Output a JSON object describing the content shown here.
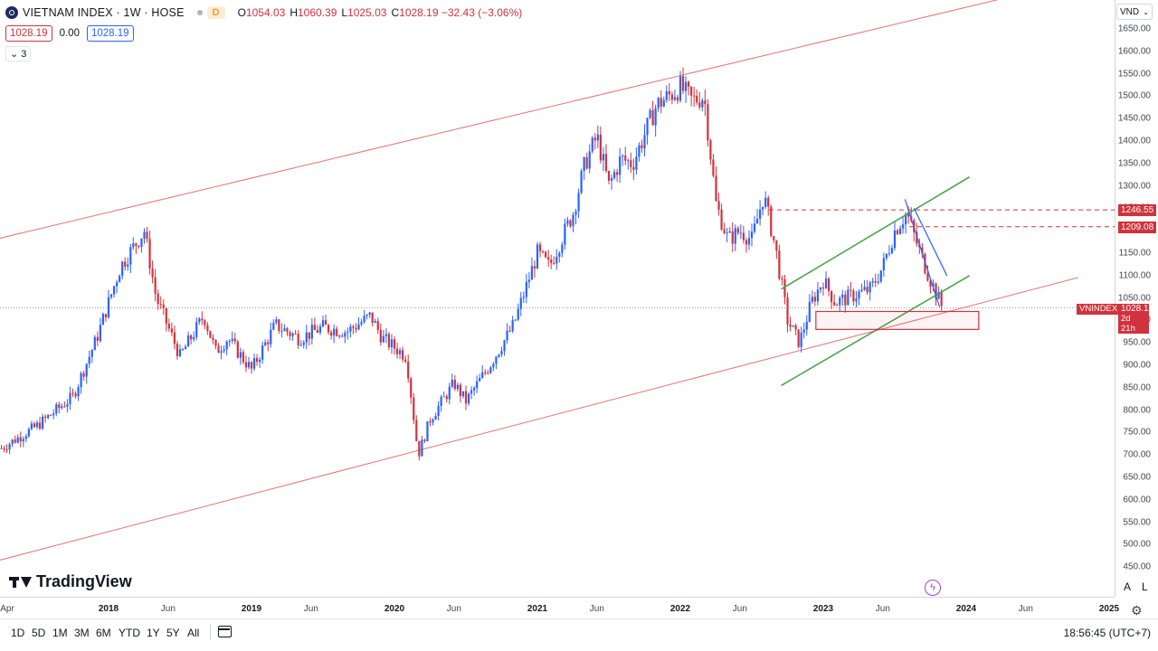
{
  "header": {
    "title": "VIETNAM INDEX · 1W · HOSE",
    "badge": "D",
    "open_key": "O",
    "open": "1054.03",
    "high_key": "H",
    "high": "1060.39",
    "low_key": "L",
    "low": "1025.03",
    "close_key": "C",
    "close": "1028.19 −32.43 (−3.06%)",
    "bid": "1028.19",
    "spread": "0.00",
    "ask": "1028.19",
    "indicator_count": "3",
    "currency": "VND"
  },
  "colors": {
    "up": "#2962ff",
    "down": "#d1323c",
    "channel": "#e57373",
    "triangle": "#43a047",
    "wedge": "#2962ff"
  },
  "chart_data": {
    "type": "candlestick",
    "symbol": "VNINDEX",
    "exchange": "HOSE",
    "interval": "1W",
    "ylim": [
      430,
      1680
    ],
    "y_ticks": [
      1650,
      1600,
      1550,
      1500,
      1450,
      1400,
      1350,
      1300,
      1250,
      1200,
      1150,
      1100,
      1050,
      1000,
      950,
      900,
      850,
      800,
      750,
      700,
      650,
      600,
      550,
      500,
      450
    ],
    "y_tick_labels": [
      "1650.00",
      "1600.00",
      "1550.00",
      "1500.00",
      "1450.00",
      "1400.00",
      "1350.00",
      "1300.00",
      "1250.00",
      "1200.00",
      "1150.00",
      "1100.00",
      "1050.00",
      "1000.00",
      "950.00",
      "900.00",
      "850.00",
      "800.00",
      "750.00",
      "700.00",
      "650.00",
      "600.00",
      "550.00",
      "500.00",
      "450.00"
    ],
    "x_ticks": [
      {
        "label": "Apr",
        "date": "2017-04",
        "year": false
      },
      {
        "label": "2018",
        "date": "2018-01",
        "year": true
      },
      {
        "label": "Jun",
        "date": "2018-06",
        "year": false
      },
      {
        "label": "2019",
        "date": "2019-01",
        "year": true
      },
      {
        "label": "Jun",
        "date": "2019-06",
        "year": false
      },
      {
        "label": "2020",
        "date": "2020-01",
        "year": true
      },
      {
        "label": "Jun",
        "date": "2020-06",
        "year": false
      },
      {
        "label": "2021",
        "date": "2021-01",
        "year": true
      },
      {
        "label": "Jun",
        "date": "2021-06",
        "year": false
      },
      {
        "label": "2022",
        "date": "2022-01",
        "year": true
      },
      {
        "label": "Jun",
        "date": "2022-06",
        "year": false
      },
      {
        "label": "2023",
        "date": "2023-01",
        "year": true
      },
      {
        "label": "Jun",
        "date": "2023-06",
        "year": false
      },
      {
        "label": "2024",
        "date": "2024-01",
        "year": true
      },
      {
        "label": "Jun",
        "date": "2024-06",
        "year": false
      },
      {
        "label": "2025",
        "date": "2025-01",
        "year": true
      }
    ],
    "price_path": [
      [
        "2017-04",
        715
      ],
      [
        "2017-07",
        765
      ],
      [
        "2017-10",
        830
      ],
      [
        "2017-12",
        960
      ],
      [
        "2018-02",
        1120
      ],
      [
        "2018-04",
        1200
      ],
      [
        "2018-05",
        1050
      ],
      [
        "2018-07",
        920
      ],
      [
        "2018-09",
        1010
      ],
      [
        "2018-10",
        930
      ],
      [
        "2018-11",
        960
      ],
      [
        "2019-01",
        890
      ],
      [
        "2019-03",
        990
      ],
      [
        "2019-05",
        960
      ],
      [
        "2019-07",
        985
      ],
      [
        "2019-09",
        975
      ],
      [
        "2019-11",
        1010
      ],
      [
        "2019-12",
        960
      ],
      [
        "2020-02",
        920
      ],
      [
        "2020-03",
        700
      ],
      [
        "2020-04",
        780
      ],
      [
        "2020-06",
        860
      ],
      [
        "2020-07",
        820
      ],
      [
        "2020-09",
        900
      ],
      [
        "2020-11",
        990
      ],
      [
        "2021-01",
        1150
      ],
      [
        "2021-02",
        1120
      ],
      [
        "2021-04",
        1240
      ],
      [
        "2021-05",
        1350
      ],
      [
        "2021-06",
        1410
      ],
      [
        "2021-07",
        1300
      ],
      [
        "2021-08",
        1360
      ],
      [
        "2021-09",
        1350
      ],
      [
        "2021-11",
        1480
      ],
      [
        "2022-01",
        1520
      ],
      [
        "2022-02",
        1490
      ],
      [
        "2022-03",
        1500
      ],
      [
        "2022-04",
        1260
      ],
      [
        "2022-05",
        1180
      ],
      [
        "2022-06",
        1200
      ],
      [
        "2022-07",
        1180
      ],
      [
        "2022-08",
        1280
      ],
      [
        "2022-09",
        1160
      ],
      [
        "2022-10",
        1000
      ],
      [
        "2022-11",
        950
      ],
      [
        "2022-12",
        1040
      ],
      [
        "2023-01",
        1090
      ],
      [
        "2023-02",
        1040
      ],
      [
        "2023-03",
        1050
      ],
      [
        "2023-04",
        1060
      ],
      [
        "2023-05",
        1070
      ],
      [
        "2023-06",
        1120
      ],
      [
        "2023-07",
        1200
      ],
      [
        "2023-08",
        1240
      ],
      [
        "2023-09",
        1160
      ],
      [
        "2023-10",
        1090
      ],
      [
        "2023-11",
        1028.19
      ]
    ],
    "last_price": 1028.19,
    "levels": [
      {
        "label": "1246.55",
        "value": 1246.55
      },
      {
        "label": "1209.08",
        "value": 1209.08
      }
    ],
    "price_label_symbol": "VNINDEX",
    "price_label_value": "1028.19",
    "price_label_countdown": "2d 21h",
    "channel": {
      "upper": [
        [
          "2017-04",
          1160
        ],
        [
          "2023-11",
          1680
        ]
      ],
      "lower": [
        [
          "2017-04",
          440
        ],
        [
          "2023-11",
          1010
        ]
      ]
    },
    "triangle": {
      "upper": [
        [
          "2022-11",
          1070
        ],
        [
          "2023-11",
          1320
        ]
      ],
      "lower": [
        [
          "2022-11",
          855
        ],
        [
          "2023-11",
          1100
        ]
      ]
    },
    "wedge": [
      [
        "2023-09",
        1160
      ],
      [
        "2023-10",
        1030
      ],
      [
        "2023-09",
        1250
      ],
      [
        "2023-11",
        1100
      ]
    ],
    "support_zone": [
      980,
      1000
    ]
  },
  "footer": {
    "brand": "TradingView",
    "timeframes": [
      "1D",
      "5D",
      "1M",
      "3M",
      "6M",
      "YTD",
      "1Y",
      "5Y",
      "All"
    ],
    "clock": "18:56:45 (UTC+7)",
    "log_a": "A",
    "log_l": "L"
  }
}
